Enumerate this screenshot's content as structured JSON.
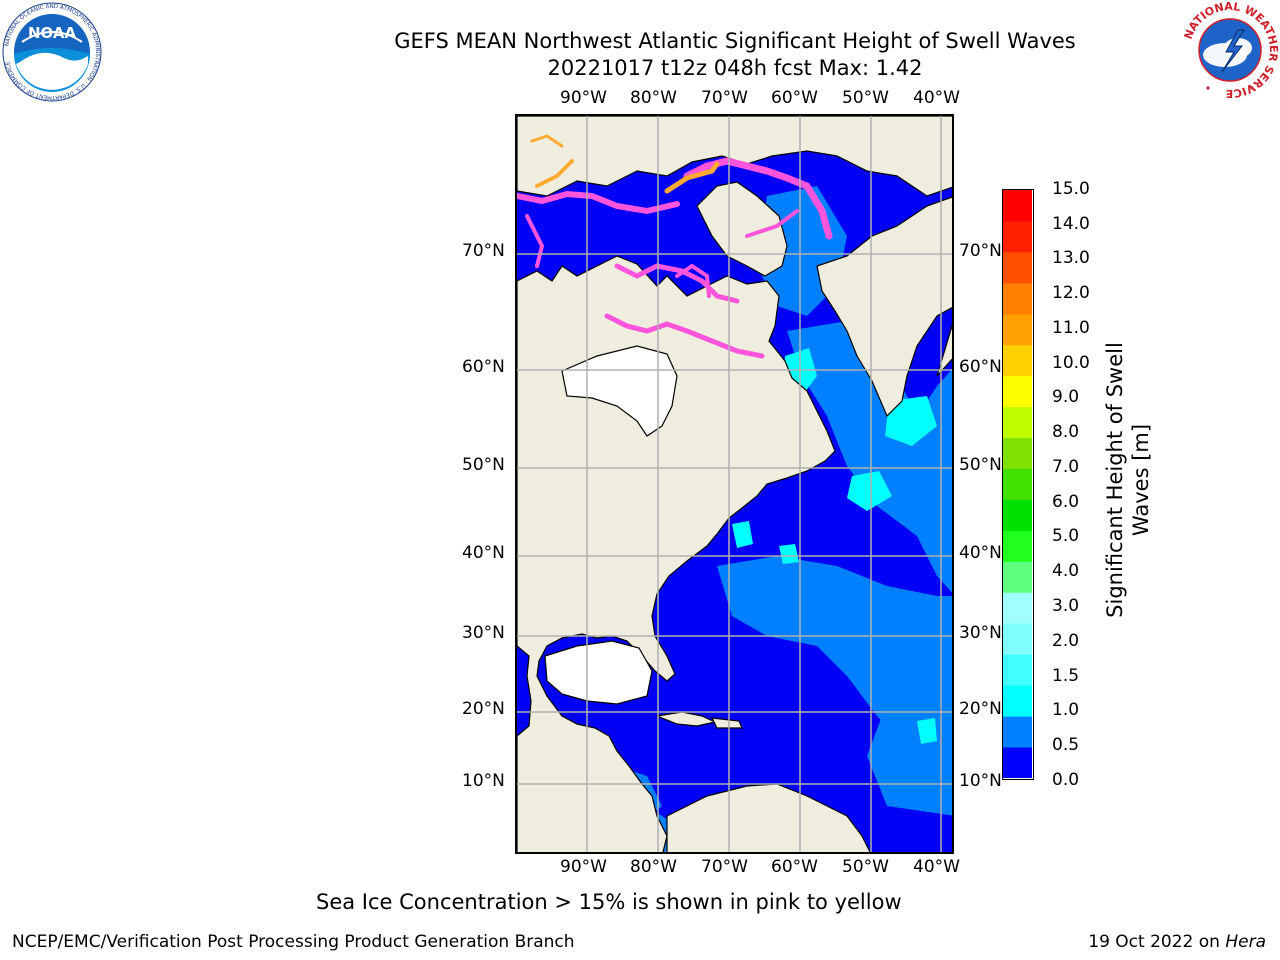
{
  "title_line1": "GEFS MEAN Northwest Atlantic Significant Height of Swell Waves",
  "title_line2": "20221017 t12z 048h fcst   Max: 1.42",
  "lon_labels": [
    "90°W",
    "80°W",
    "70°W",
    "60°W",
    "50°W",
    "40°W"
  ],
  "lat_labels": [
    "70°N",
    "60°N",
    "50°N",
    "40°N",
    "30°N",
    "20°N",
    "10°N"
  ],
  "colorbar": {
    "title_line1": "Significant Height of Swell",
    "title_line2": "Waves [m]",
    "tick_labels": [
      "15.0",
      "14.0",
      "13.0",
      "12.0",
      "11.0",
      "10.0",
      "9.0",
      "8.0",
      "7.0",
      "6.0",
      "5.0",
      "4.0",
      "3.0",
      "2.0",
      "1.5",
      "1.0",
      "0.5",
      "0.0"
    ],
    "colors_bottom_to_top": [
      "#0000ff",
      "#0080ff",
      "#00ffff",
      "#40ffff",
      "#80ffff",
      "#a0ffff",
      "#60ff80",
      "#20ff20",
      "#00e000",
      "#40e000",
      "#80e000",
      "#c0ff00",
      "#ffff00",
      "#ffd000",
      "#ffa000",
      "#ff8000",
      "#ff5000",
      "#ff2000",
      "#ff0000"
    ]
  },
  "logos": {
    "noaa_text": "NOAA",
    "noaa_ring_text": "NATIONAL OCEANIC AND ATMOSPHERIC ADMINISTRATION · U.S. DEPARTMENT OF COMMERCE",
    "nws_ring_text": "NATIONAL WEATHER SERVICE"
  },
  "sea_ice_note": "Sea Ice Concentration > 15% is shown in pink to yellow",
  "footer_left": "NCEP/EMC/Verification Post Processing Product Generation Branch",
  "footer_right_prefix": "19 Oct 2022 on ",
  "footer_right_machine": "Hera",
  "colors": {
    "land": "#efedde",
    "swell_0_05": "#0000f5",
    "swell_05_10": "#0080ff",
    "swell_10_15": "#00ffff",
    "ice": "#ff55dd",
    "ice_high": "#ffaa33",
    "grid": "#b0b0b0"
  }
}
